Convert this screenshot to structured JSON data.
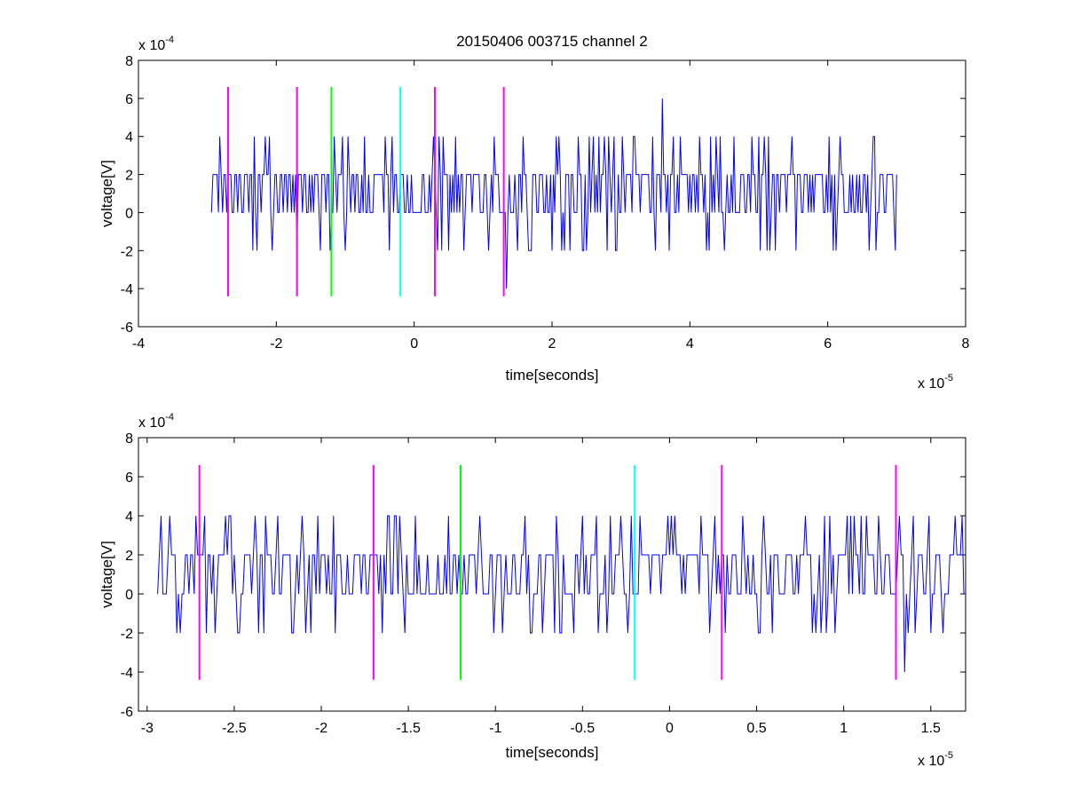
{
  "figure": {
    "title": "20150406 003715 channel 2"
  },
  "chart_data": [
    {
      "type": "line",
      "title": "20150406 003715 channel 2",
      "xlabel": "time[seconds]",
      "ylabel": "voltage[V]",
      "x_multiplier": "x 10",
      "x_exponent": "-5",
      "y_multiplier": "x 10",
      "y_exponent": "-4",
      "xlim": [
        -4e-05,
        8e-05
      ],
      "ylim": [
        -0.0006,
        0.0008
      ],
      "xticks": [
        -4e-05,
        -2e-05,
        0,
        2e-05,
        4e-05,
        6e-05,
        8e-05
      ],
      "xtick_labels": [
        "-4",
        "-2",
        "0",
        "2",
        "4",
        "6",
        "8"
      ],
      "yticks": [
        -0.0006,
        -0.0004,
        -0.0002,
        0,
        0.0002,
        0.0004,
        0.0006,
        0.0008
      ],
      "ytick_labels": [
        "-6",
        "-4",
        "-2",
        "0",
        "2",
        "4",
        "6",
        "8"
      ],
      "grid": false,
      "signal": {
        "color": "#0000ff",
        "x_start": -2.94e-05,
        "x_end": 7e-05,
        "sample_step": 2e-07,
        "levels": [
          -0.0004,
          -0.0002,
          0,
          0.0002,
          0.0004,
          0.0006
        ],
        "peak_max": {
          "x": 3.6e-05,
          "y": 0.0006
        },
        "peak_min": {
          "x": 1.35e-05,
          "y": -0.0004
        }
      },
      "markers": [
        {
          "x": -2.7e-05,
          "color": "#ff00ff",
          "y_range": [
            -0.00044,
            0.00066
          ]
        },
        {
          "x": -1.7e-05,
          "color": "#ff00ff",
          "y_range": [
            -0.00044,
            0.00066
          ]
        },
        {
          "x": -1.2e-05,
          "color": "#00ff00",
          "y_range": [
            -0.00044,
            0.00066
          ]
        },
        {
          "x": -2e-06,
          "color": "#00ffff",
          "y_range": [
            -0.00044,
            0.00066
          ]
        },
        {
          "x": 3e-06,
          "color": "#ff00ff",
          "y_range": [
            -0.00044,
            0.00066
          ]
        },
        {
          "x": 1.3e-05,
          "color": "#ff00ff",
          "y_range": [
            -0.00044,
            0.00066
          ]
        }
      ]
    },
    {
      "type": "line",
      "title": "",
      "xlabel": "time[seconds]",
      "ylabel": "voltage[V]",
      "x_multiplier": "x 10",
      "x_exponent": "-5",
      "y_multiplier": "x 10",
      "y_exponent": "-4",
      "xlim": [
        -3.05e-05,
        1.7e-05
      ],
      "ylim": [
        -0.0006,
        0.0008
      ],
      "xticks": [
        -3e-05,
        -2.5e-05,
        -2e-05,
        -1.5e-05,
        -1e-05,
        -5e-06,
        0,
        5e-06,
        1e-05,
        1.5e-05
      ],
      "xtick_labels": [
        "-3",
        "-2.5",
        "-2",
        "-1.5",
        "-1",
        "-0.5",
        "0",
        "0.5",
        "1",
        "1.5"
      ],
      "yticks": [
        -0.0006,
        -0.0004,
        -0.0002,
        0,
        0.0002,
        0.0004,
        0.0006,
        0.0008
      ],
      "ytick_labels": [
        "-6",
        "-4",
        "-2",
        "0",
        "2",
        "4",
        "6",
        "8"
      ],
      "grid": false,
      "signal": {
        "color": "#0000ff",
        "x_start": -2.94e-05,
        "x_end": 1.7e-05,
        "sample_step": 1e-07,
        "levels": [
          -0.0004,
          -0.0002,
          0,
          0.0002,
          0.0004
        ],
        "peak_min": {
          "x": 1.35e-05,
          "y": -0.0004
        }
      },
      "markers": [
        {
          "x": -2.7e-05,
          "color": "#ff00ff",
          "y_range": [
            -0.00044,
            0.00066
          ]
        },
        {
          "x": -1.7e-05,
          "color": "#ff00ff",
          "y_range": [
            -0.00044,
            0.00066
          ]
        },
        {
          "x": -1.2e-05,
          "color": "#00ff00",
          "y_range": [
            -0.00044,
            0.00066
          ]
        },
        {
          "x": -2e-06,
          "color": "#00ffff",
          "y_range": [
            -0.00044,
            0.00066
          ]
        },
        {
          "x": 3e-06,
          "color": "#ff00ff",
          "y_range": [
            -0.00044,
            0.00066
          ]
        },
        {
          "x": 1.3e-05,
          "color": "#ff00ff",
          "y_range": [
            -0.00044,
            0.00066
          ]
        }
      ]
    }
  ]
}
